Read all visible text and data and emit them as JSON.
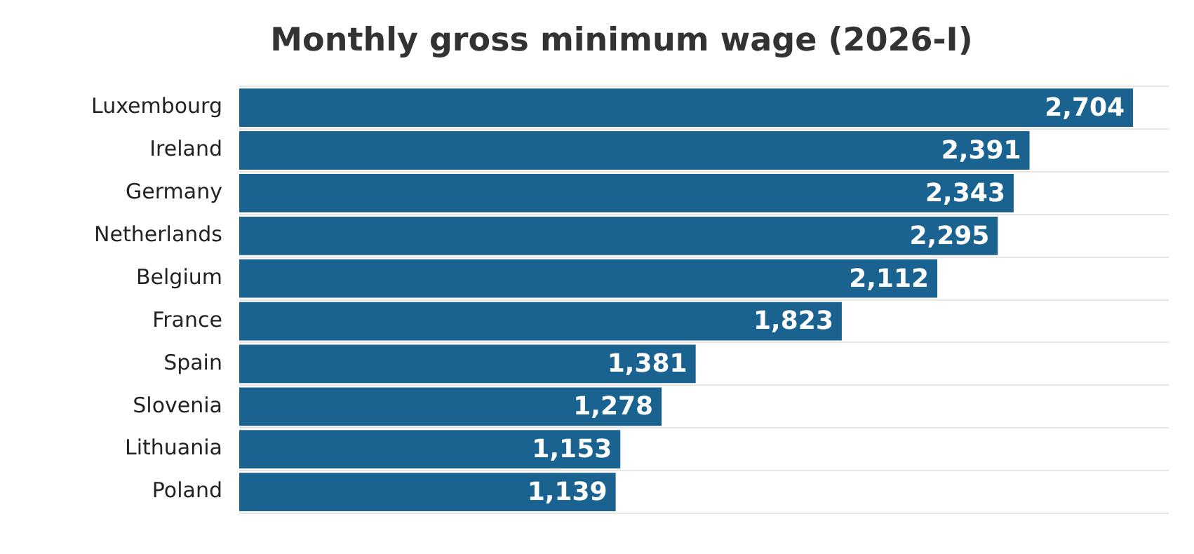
{
  "chart_data": {
    "type": "bar",
    "orientation": "horizontal",
    "title": "Monthly gross minimum wage (2026-I)",
    "categories": [
      "Luxembourg",
      "Ireland",
      "Germany",
      "Netherlands",
      "Belgium",
      "France",
      "Spain",
      "Slovenia",
      "Lithuania",
      "Poland"
    ],
    "values": [
      2704,
      2391,
      2343,
      2295,
      2112,
      1823,
      1381,
      1278,
      1153,
      1139
    ],
    "value_labels": [
      "2,704",
      "2,391",
      "2,343",
      "2,295",
      "2,112",
      "1,823",
      "1,381",
      "1,278",
      "1,153",
      "1,139"
    ],
    "color": "#1a6391",
    "grid": "y",
    "legend": false
  }
}
